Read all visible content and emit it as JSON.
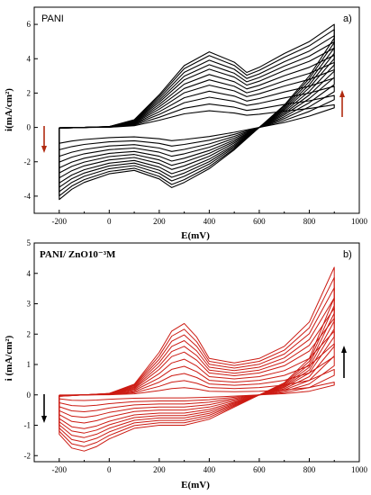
{
  "chart_data": [
    {
      "type": "line",
      "title": "PANI",
      "panel_label": "a)",
      "xlabel": "E(mV)",
      "ylabel": "i(mA/cm²)",
      "xlim": [
        -300,
        1000
      ],
      "ylim": [
        -5,
        7
      ],
      "xticks": [
        "-200",
        "0",
        "200",
        "400",
        "600",
        "800",
        "1000"
      ],
      "yticks": [
        "-4",
        "-2",
        "0",
        "2",
        "4",
        "6"
      ],
      "line_color": "#000000",
      "arrow_color": "#b02a10",
      "cycles": 12,
      "series_scale": [
        0.22,
        0.31,
        0.4,
        0.48,
        0.56,
        0.63,
        0.7,
        0.77,
        0.83,
        0.89,
        0.95,
        1.0
      ],
      "anodic": {
        "x": [
          -200,
          -100,
          0,
          100,
          200,
          300,
          400,
          500,
          550,
          600,
          700,
          800,
          900
        ],
        "y": [
          -0.05,
          0.0,
          0.05,
          0.45,
          1.9,
          3.6,
          4.4,
          3.8,
          3.2,
          3.5,
          4.3,
          5.0,
          6.0
        ]
      },
      "cathodic": {
        "x": [
          900,
          800,
          700,
          600,
          500,
          400,
          300,
          250,
          200,
          100,
          0,
          -100,
          -150,
          -200
        ],
        "y": [
          5.2,
          3.0,
          1.3,
          0.0,
          -1.3,
          -2.4,
          -3.2,
          -3.5,
          -3.0,
          -2.5,
          -2.7,
          -3.2,
          -3.6,
          -4.2
        ]
      }
    },
    {
      "type": "line",
      "title": "PANI/ ZnO10⁻³M",
      "panel_label": "b)",
      "xlabel": "E(mV)",
      "ylabel": "i (mA/cm²)",
      "xlim": [
        -300,
        1000
      ],
      "ylim": [
        -2.2,
        5
      ],
      "xticks": [
        "-200",
        "0",
        "200",
        "400",
        "600",
        "800",
        "1000"
      ],
      "yticks": [
        "-2",
        "-1",
        "0",
        "1",
        "2",
        "3",
        "4",
        "5"
      ],
      "line_color": "#cc1a12",
      "arrow_color": "#000000",
      "cycles": 11,
      "series_scale": [
        0.1,
        0.2,
        0.3,
        0.4,
        0.5,
        0.6,
        0.68,
        0.76,
        0.84,
        0.92,
        1.0
      ],
      "anodic": {
        "x": [
          -200,
          -100,
          0,
          100,
          200,
          250,
          300,
          350,
          400,
          500,
          600,
          700,
          800,
          900
        ],
        "y": [
          -0.05,
          0.0,
          0.05,
          0.35,
          1.4,
          2.1,
          2.35,
          1.9,
          1.2,
          1.05,
          1.2,
          1.6,
          2.4,
          4.2
        ]
      },
      "cathodic": {
        "x": [
          900,
          800,
          700,
          600,
          500,
          400,
          300,
          200,
          100,
          0,
          -50,
          -100,
          -150,
          -200
        ],
        "y": [
          3.2,
          1.2,
          0.4,
          0.0,
          -0.4,
          -0.8,
          -1.0,
          -1.0,
          -1.1,
          -1.45,
          -1.7,
          -1.85,
          -1.75,
          -1.3
        ]
      }
    }
  ]
}
